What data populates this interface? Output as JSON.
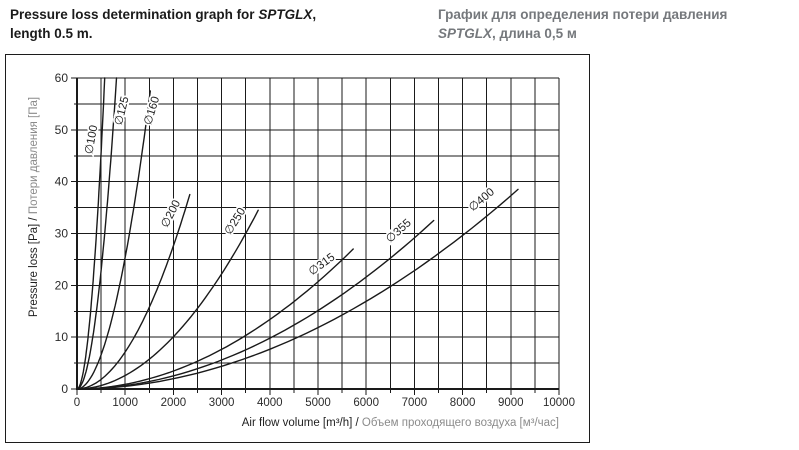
{
  "colors": {
    "title_en": "#1b1b1b",
    "title_ru": "#75787c"
  },
  "header": {
    "title_en": {
      "line1_pre": "Pressure loss determination graph for ",
      "product": "SPTGLX",
      "line1_post": ",",
      "line2": "length 0.5 m."
    },
    "title_ru": {
      "line1": "График для определения потери давления",
      "product": "SPTGLX",
      "line2_rest": ", длина 0,5 м"
    }
  },
  "chart_data": {
    "type": "line",
    "title": "Pressure loss determination graph for SPTGLX, length 0.5 m.",
    "title_ru": "График для определения потери давления SPTGLX, длина 0,5 м",
    "xlabel": {
      "en": "Air flow volume [m³/h]",
      "sep": " / ",
      "ru": "Объем проходящего воздуха [м³/час]"
    },
    "ylabel": {
      "en": "Pressure loss [Pa]",
      "sep": " / ",
      "ru": "Потери давления [Па]"
    },
    "xlim": [
      0,
      10000
    ],
    "ylim": [
      0,
      60
    ],
    "x_ticks": [
      0,
      1000,
      2000,
      3000,
      4000,
      5000,
      6000,
      7000,
      8000,
      9000,
      10000
    ],
    "x_minor_step": 500,
    "y_ticks": [
      0,
      10,
      20,
      30,
      40,
      50,
      60
    ],
    "y_minor_step": 5,
    "grid": true,
    "legend": "labels-on-curves",
    "curve_exponent": 1.95,
    "series": [
      {
        "name": "∅100",
        "diameter_mm": 100,
        "endpoint": {
          "x": 575,
          "y": 60
        },
        "label": {
          "x": 370,
          "y": 48,
          "angle": -80
        }
      },
      {
        "name": "∅125",
        "diameter_mm": 125,
        "endpoint": {
          "x": 820,
          "y": 60
        },
        "label": {
          "x": 1000,
          "y": 53.5,
          "angle": -76
        }
      },
      {
        "name": "∅160",
        "diameter_mm": 160,
        "endpoint": {
          "x": 1520,
          "y": 57.5
        },
        "label": {
          "x": 1620,
          "y": 53.5,
          "angle": -73
        }
      },
      {
        "name": "∅200",
        "diameter_mm": 200,
        "endpoint": {
          "x": 2340,
          "y": 37.5
        },
        "label": {
          "x": 2010,
          "y": 33.5,
          "angle": -63
        }
      },
      {
        "name": "∅250",
        "diameter_mm": 250,
        "endpoint": {
          "x": 3760,
          "y": 34.5
        },
        "label": {
          "x": 3340,
          "y": 32,
          "angle": -58
        }
      },
      {
        "name": "∅315",
        "diameter_mm": 315,
        "endpoint": {
          "x": 5730,
          "y": 27
        },
        "label": {
          "x": 5120,
          "y": 23.5,
          "angle": -36
        }
      },
      {
        "name": "∅355",
        "diameter_mm": 355,
        "endpoint": {
          "x": 7400,
          "y": 32.5
        },
        "label": {
          "x": 6720,
          "y": 30,
          "angle": -42
        }
      },
      {
        "name": "∅400",
        "diameter_mm": 400,
        "endpoint": {
          "x": 9150,
          "y": 38.5
        },
        "label": {
          "x": 8440,
          "y": 36,
          "angle": -40
        }
      }
    ],
    "colors": {
      "curve": "#1a1a1a",
      "grid": "#1a1a1a",
      "axis": "#1a1a1a",
      "tick_label": "#2b2b2b",
      "axis_label_en": "#1f1f1f",
      "axis_label_ru": "#8b8b8b",
      "curve_label": "#1f1f1f",
      "label_halo": "#ffffff"
    }
  }
}
